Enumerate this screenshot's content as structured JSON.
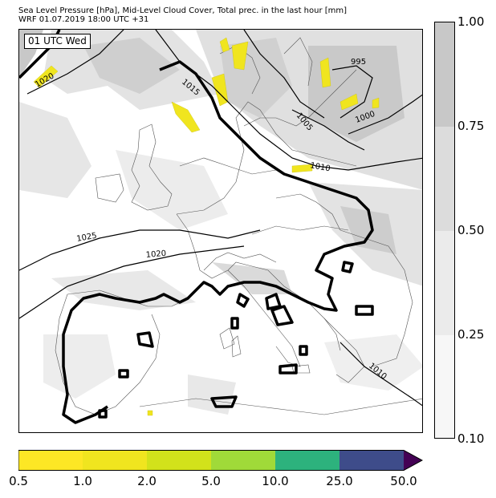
{
  "header": {
    "title_line1": "Sea Level Pressure [hPa], Mid-Level Cloud Cover, Total prec. in the last hour [mm]",
    "title_line2": "WRF 01.07.2019 18:00 UTC +31"
  },
  "map": {
    "time_label": "01 UTC Wed",
    "isobar_labels": [
      "1020",
      "1015",
      "995",
      "1005",
      "1000",
      "1010",
      "1025",
      "1020",
      "1010"
    ]
  },
  "cloud_colorbar": {
    "ticks": [
      "1.00",
      "0.75",
      "0.50",
      "0.25",
      "0.10"
    ],
    "colors": [
      "#c8c8c8",
      "#dcdcdc",
      "#ebebeb",
      "#f7f7f7"
    ]
  },
  "precip_colorbar": {
    "ticks": [
      "0.5",
      "1.0",
      "2.0",
      "5.0",
      "10.0",
      "25.0",
      "50.0"
    ],
    "colors": [
      "#fde725",
      "#f0e51f",
      "#d2e21b",
      "#a0da39",
      "#2db27d",
      "#3e4c8a",
      "#440154"
    ]
  }
}
